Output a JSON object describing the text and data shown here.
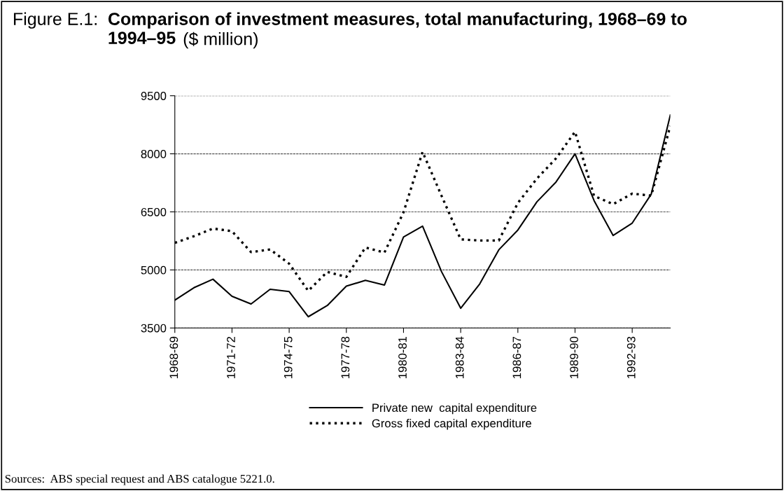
{
  "chart_data": {
    "type": "line",
    "title": "Comparison of investment measures, total manufacturing, 1968–69 to 1994–95",
    "subtitle": "($ million)",
    "annotations": [
      "Figure E.1:",
      "Sources:  ABS special request and ABS catalogue 5221.0."
    ],
    "categories": [
      "1968-69",
      null,
      null,
      "1971-72",
      null,
      null,
      "1974-75",
      null,
      null,
      "1977-78",
      null,
      null,
      "1980-81",
      null,
      null,
      "1983-84",
      null,
      null,
      "1986-87",
      null,
      null,
      "1989-90",
      null,
      null,
      "1992-93",
      null,
      null
    ],
    "series": [
      {
        "name": "Private new  capital expenditure",
        "color": "#000000",
        "line_style": "solid",
        "values": [
          4220,
          4540,
          4760,
          4320,
          4120,
          4500,
          4440,
          3790,
          4080,
          4580,
          4730,
          4610,
          5850,
          6130,
          4950,
          4010,
          4640,
          5520,
          6030,
          6760,
          7270,
          8000,
          6790,
          5890,
          6210,
          6960,
          9000
        ]
      },
      {
        "name": "Gross fixed capital expenditure",
        "color": "#000000",
        "line_style": "dotted",
        "values": [
          5700,
          5870,
          6070,
          6000,
          5460,
          5530,
          5160,
          4460,
          4950,
          4820,
          5580,
          5450,
          6490,
          8050,
          6910,
          5790,
          5760,
          5760,
          6730,
          7360,
          7880,
          8570,
          6910,
          6700,
          6970,
          6920,
          8720
        ]
      }
    ],
    "ylim": [
      3500,
      9500
    ],
    "yticks": [
      3500,
      5000,
      6500,
      8000,
      9500
    ],
    "grid": "y",
    "legend": "bottom"
  }
}
